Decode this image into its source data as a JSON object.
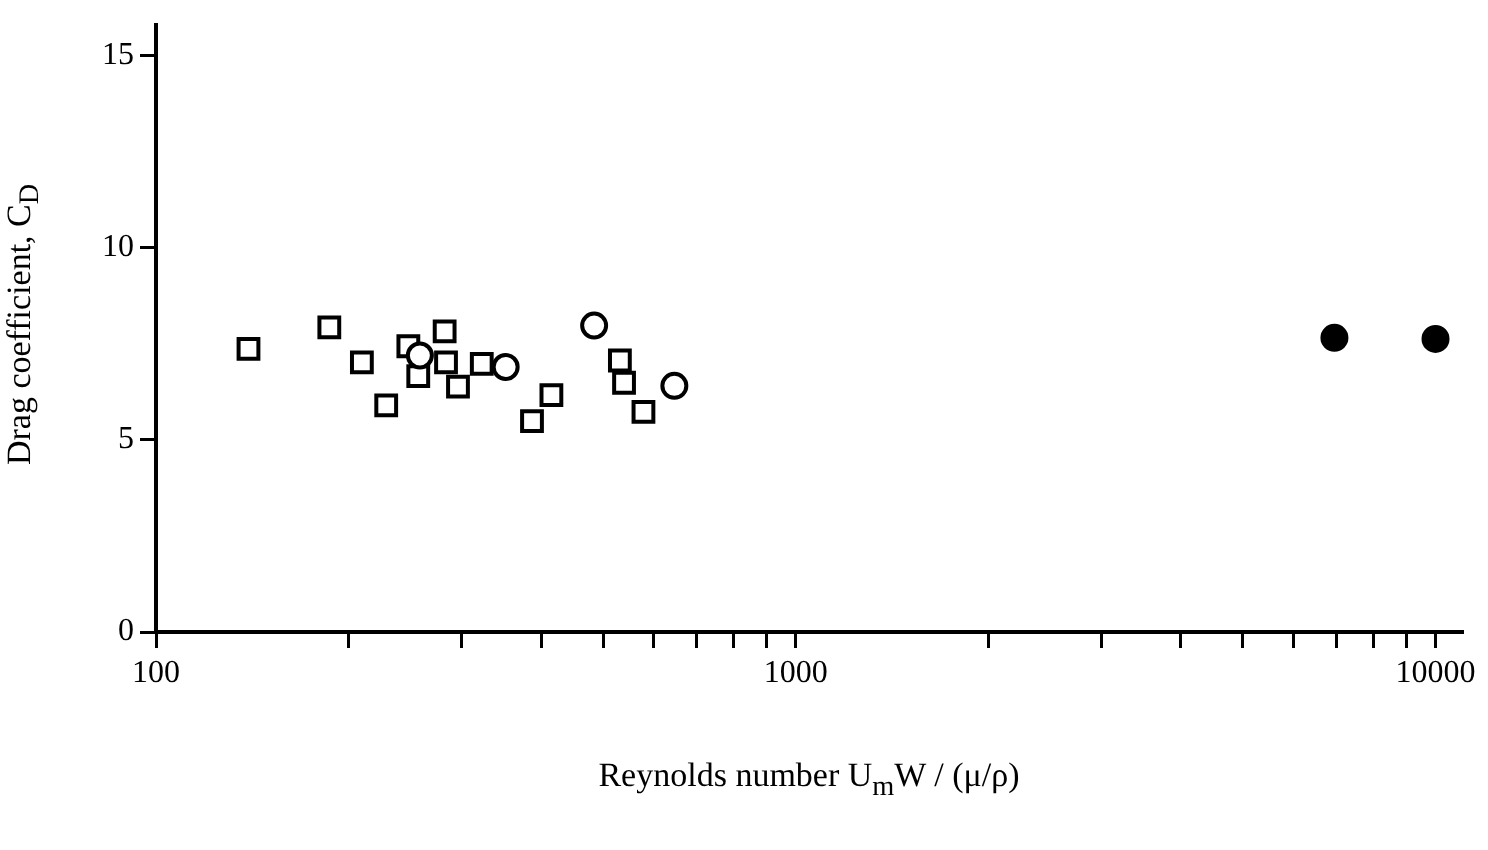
{
  "chart_data": {
    "type": "scatter",
    "xlabel": "Reynolds number U$_{m}$W / (μ/ρ)",
    "ylabel": "Drag coefficient, C$_{D}$",
    "log": "x",
    "grid": false,
    "legend": false,
    "xlim": [
      100,
      11000
    ],
    "ylim": [
      0,
      15.8
    ],
    "xticks": [
      100,
      {
        "value": 200,
        "label": null
      },
      {
        "value": 300,
        "label": null
      },
      {
        "value": 400,
        "label": null
      },
      {
        "value": 500,
        "label": null
      },
      {
        "value": 600,
        "label": null
      },
      {
        "value": 700,
        "label": null
      },
      {
        "value": 800,
        "label": null
      },
      {
        "value": 900,
        "label": null
      },
      1000,
      {
        "value": 2000,
        "label": null
      },
      {
        "value": 3000,
        "label": null
      },
      {
        "value": 4000,
        "label": null
      },
      {
        "value": 5000,
        "label": null
      },
      {
        "value": 6000,
        "label": null
      },
      {
        "value": 7000,
        "label": null
      },
      {
        "value": 8000,
        "label": null
      },
      {
        "value": 9000,
        "label": null
      },
      10000
    ],
    "yticks": [
      0,
      5,
      10,
      15
    ],
    "series": [
      {
        "color": "#ffffff",
        "marker": "square",
        "x": [
          139.5,
          186.6,
          209.8,
          229,
          248,
          257,
          282.6,
          284,
          296.5,
          323,
          387,
          415,
          531,
          539,
          578
        ],
        "values": [
          7.37,
          7.93,
          7.02,
          5.9,
          7.44,
          6.66,
          7.83,
          7.02,
          6.39,
          6.98,
          5.49,
          6.17,
          7.07,
          6.49,
          5.73
        ]
      },
      {
        "color": "#ffffff",
        "marker": "circle",
        "x": [
          258.5,
          352,
          484,
          646
        ],
        "values": [
          7.2,
          6.9,
          7.98,
          6.41
        ]
      },
      {
        "color": "#000000",
        "marker": "circle",
        "x": [
          6950,
          10000
        ],
        "values": [
          7.66,
          7.63
        ]
      }
    ]
  }
}
